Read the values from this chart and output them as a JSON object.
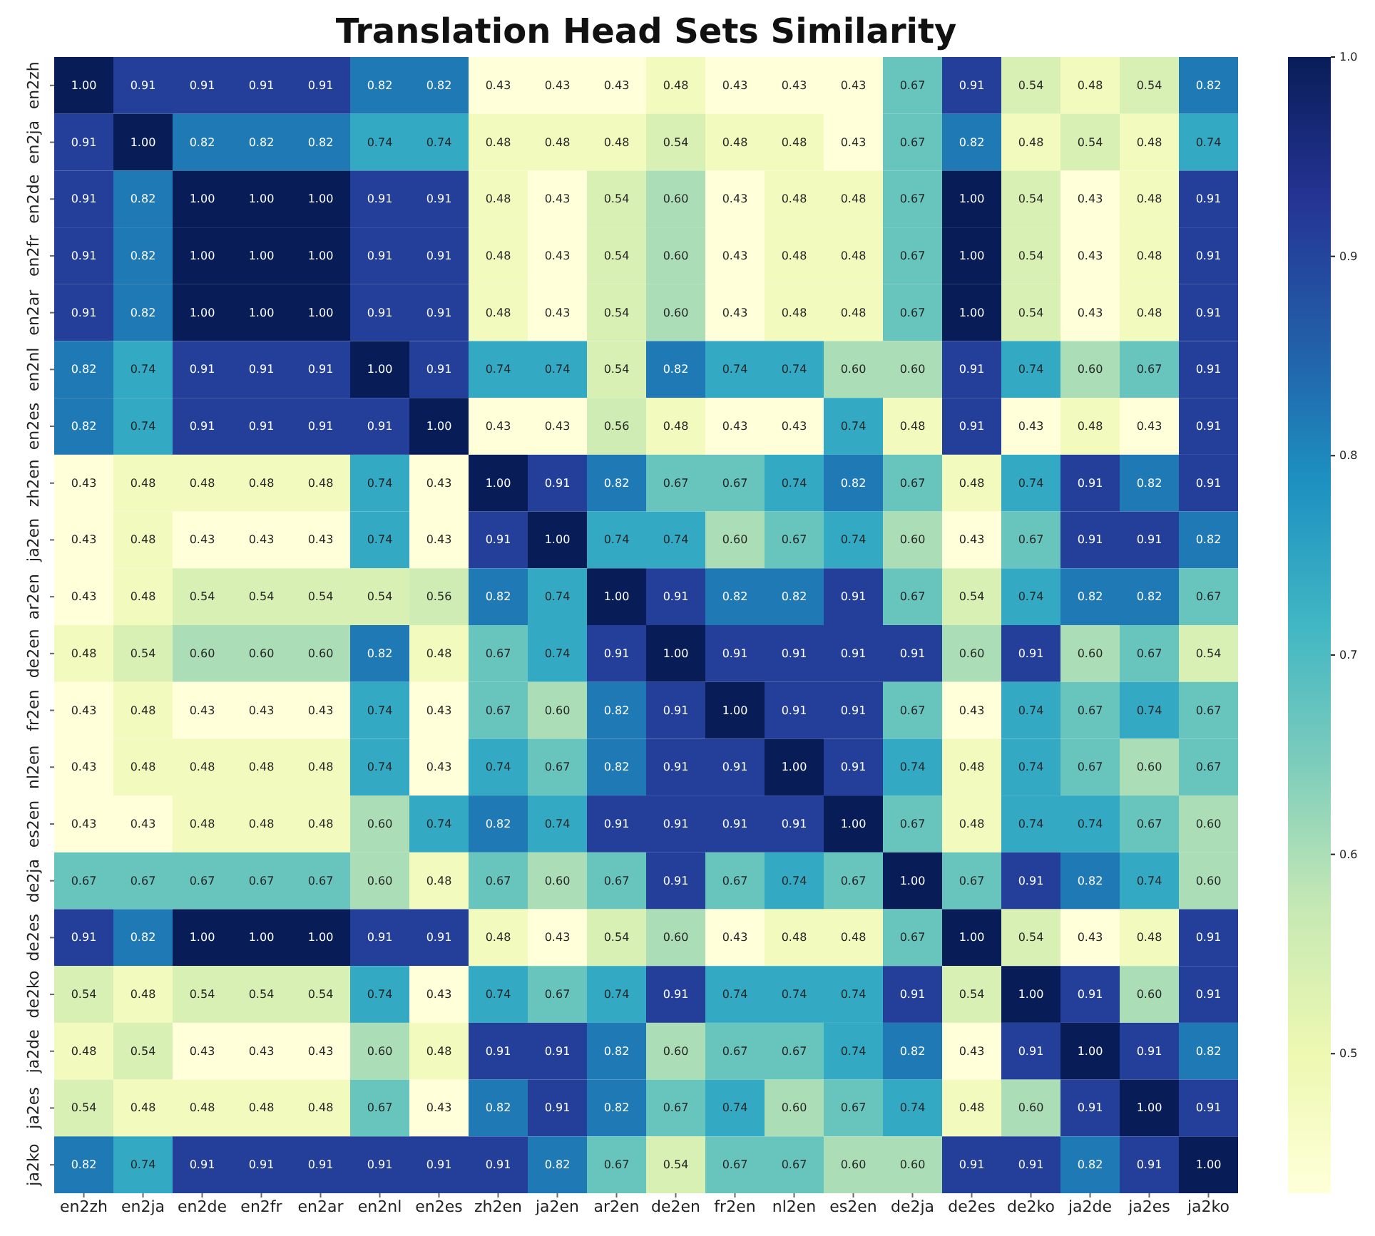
{
  "chart_data": {
    "type": "heatmap",
    "title": "Translation Head Sets Similarity",
    "categories": [
      "en2zh",
      "en2ja",
      "en2de",
      "en2fr",
      "en2ar",
      "en2nl",
      "en2es",
      "zh2en",
      "ja2en",
      "ar2en",
      "de2en",
      "fr2en",
      "nl2en",
      "es2en",
      "de2ja",
      "de2es",
      "de2ko",
      "ja2de",
      "ja2es",
      "ja2ko"
    ],
    "y_categories": [
      "en2zh",
      "en2ja",
      "en2de",
      "en2fr",
      "en2ar",
      "en2nl",
      "en2es",
      "zh2en",
      "ja2en",
      "ar2en",
      "de2en",
      "fr2en",
      "nl2en",
      "es2en",
      "de2ja",
      "de2es",
      "de2ko",
      "ja2de",
      "ja2es",
      "ja2ko"
    ],
    "cells": [
      [
        1.0,
        0.91,
        0.91,
        0.91,
        0.91,
        0.82,
        0.82,
        0.43,
        0.43,
        0.43,
        0.48,
        0.43,
        0.43,
        0.43,
        0.67,
        0.91,
        0.54,
        0.48,
        0.54,
        0.82
      ],
      [
        0.91,
        1.0,
        0.82,
        0.82,
        0.82,
        0.74,
        0.74,
        0.48,
        0.48,
        0.48,
        0.54,
        0.48,
        0.48,
        0.43,
        0.67,
        0.82,
        0.48,
        0.54,
        0.48,
        0.74
      ],
      [
        0.91,
        0.82,
        1.0,
        1.0,
        1.0,
        0.91,
        0.91,
        0.48,
        0.43,
        0.54,
        0.6,
        0.43,
        0.48,
        0.48,
        0.67,
        1.0,
        0.54,
        0.43,
        0.48,
        0.91
      ],
      [
        0.91,
        0.82,
        1.0,
        1.0,
        1.0,
        0.91,
        0.91,
        0.48,
        0.43,
        0.54,
        0.6,
        0.43,
        0.48,
        0.48,
        0.67,
        1.0,
        0.54,
        0.43,
        0.48,
        0.91
      ],
      [
        0.91,
        0.82,
        1.0,
        1.0,
        1.0,
        0.91,
        0.91,
        0.48,
        0.43,
        0.54,
        0.6,
        0.43,
        0.48,
        0.48,
        0.67,
        1.0,
        0.54,
        0.43,
        0.48,
        0.91
      ],
      [
        0.82,
        0.74,
        0.91,
        0.91,
        0.91,
        1.0,
        0.91,
        0.74,
        0.74,
        0.54,
        0.82,
        0.74,
        0.74,
        0.6,
        0.6,
        0.91,
        0.74,
        0.6,
        0.67,
        0.91
      ],
      [
        0.82,
        0.74,
        0.91,
        0.91,
        0.91,
        0.91,
        1.0,
        0.43,
        0.43,
        0.56,
        0.48,
        0.43,
        0.43,
        0.74,
        0.48,
        0.91,
        0.43,
        0.48,
        0.43,
        0.91
      ],
      [
        0.43,
        0.48,
        0.48,
        0.48,
        0.48,
        0.74,
        0.43,
        1.0,
        0.91,
        0.82,
        0.67,
        0.67,
        0.74,
        0.82,
        0.67,
        0.48,
        0.74,
        0.91,
        0.82,
        0.91
      ],
      [
        0.43,
        0.48,
        0.43,
        0.43,
        0.43,
        0.74,
        0.43,
        0.91,
        1.0,
        0.74,
        0.74,
        0.6,
        0.67,
        0.74,
        0.6,
        0.43,
        0.67,
        0.91,
        0.91,
        0.82
      ],
      [
        0.43,
        0.48,
        0.54,
        0.54,
        0.54,
        0.54,
        0.56,
        0.82,
        0.74,
        1.0,
        0.91,
        0.82,
        0.82,
        0.91,
        0.67,
        0.54,
        0.74,
        0.82,
        0.82,
        0.67
      ],
      [
        0.48,
        0.54,
        0.6,
        0.6,
        0.6,
        0.82,
        0.48,
        0.67,
        0.74,
        0.91,
        1.0,
        0.91,
        0.91,
        0.91,
        0.91,
        0.6,
        0.91,
        0.6,
        0.67,
        0.54
      ],
      [
        0.43,
        0.48,
        0.43,
        0.43,
        0.43,
        0.74,
        0.43,
        0.67,
        0.6,
        0.82,
        0.91,
        1.0,
        0.91,
        0.91,
        0.67,
        0.43,
        0.74,
        0.67,
        0.74,
        0.67
      ],
      [
        0.43,
        0.48,
        0.48,
        0.48,
        0.48,
        0.74,
        0.43,
        0.74,
        0.67,
        0.82,
        0.91,
        0.91,
        1.0,
        0.91,
        0.74,
        0.48,
        0.74,
        0.67,
        0.6,
        0.67
      ],
      [
        0.43,
        0.43,
        0.48,
        0.48,
        0.48,
        0.6,
        0.74,
        0.82,
        0.74,
        0.91,
        0.91,
        0.91,
        0.91,
        1.0,
        0.67,
        0.48,
        0.74,
        0.74,
        0.67,
        0.6
      ],
      [
        0.67,
        0.67,
        0.67,
        0.67,
        0.67,
        0.6,
        0.48,
        0.67,
        0.6,
        0.67,
        0.91,
        0.67,
        0.74,
        0.67,
        1.0,
        0.67,
        0.91,
        0.82,
        0.74,
        0.6
      ],
      [
        0.91,
        0.82,
        1.0,
        1.0,
        1.0,
        0.91,
        0.91,
        0.48,
        0.43,
        0.54,
        0.6,
        0.43,
        0.48,
        0.48,
        0.67,
        1.0,
        0.54,
        0.43,
        0.48,
        0.91
      ],
      [
        0.54,
        0.48,
        0.54,
        0.54,
        0.54,
        0.74,
        0.43,
        0.74,
        0.67,
        0.74,
        0.91,
        0.74,
        0.74,
        0.74,
        0.91,
        0.54,
        1.0,
        0.91,
        0.6,
        0.91
      ],
      [
        0.48,
        0.54,
        0.43,
        0.43,
        0.43,
        0.6,
        0.48,
        0.91,
        0.91,
        0.82,
        0.6,
        0.67,
        0.67,
        0.74,
        0.82,
        0.43,
        0.91,
        1.0,
        0.91,
        0.82
      ],
      [
        0.54,
        0.48,
        0.48,
        0.48,
        0.48,
        0.67,
        0.43,
        0.82,
        0.91,
        0.82,
        0.67,
        0.74,
        0.6,
        0.67,
        0.74,
        0.48,
        0.6,
        0.91,
        1.0,
        0.91
      ],
      [
        0.82,
        0.74,
        0.91,
        0.91,
        0.91,
        0.91,
        0.91,
        0.91,
        0.82,
        0.67,
        0.54,
        0.67,
        0.67,
        0.6,
        0.6,
        0.91,
        0.91,
        0.82,
        0.91,
        1.0
      ]
    ],
    "cell_labels": [
      [
        "1.00",
        "0.91",
        "0.91",
        "0.91",
        "0.91",
        "0.82",
        "0.82",
        "0.43",
        "0.43",
        "0.43",
        "0.48",
        "0.43",
        "0.43",
        "0.43",
        "0.67",
        "0.91",
        "0.54",
        "0.48",
        "0.54",
        "0.82"
      ],
      [
        "0.91",
        "1.00",
        "0.82",
        "0.82",
        "0.82",
        "0.74",
        "0.74",
        "0.48",
        "0.48",
        "0.48",
        "0.54",
        "0.48",
        "0.48",
        "0.43",
        "0.67",
        "0.82",
        "0.48",
        "0.54",
        "0.48",
        "0.74"
      ],
      [
        "0.91",
        "0.82",
        "1.00",
        "1.00",
        "1.00",
        "0.91",
        "0.91",
        "0.48",
        "0.43",
        "0.54",
        "0.60",
        "0.43",
        "0.48",
        "0.48",
        "0.67",
        "1.00",
        "0.54",
        "0.43",
        "0.48",
        "0.91"
      ],
      [
        "0.91",
        "0.82",
        "1.00",
        "1.00",
        "1.00",
        "0.91",
        "0.91",
        "0.48",
        "0.43",
        "0.54",
        "0.60",
        "0.43",
        "0.48",
        "0.48",
        "0.67",
        "1.00",
        "0.54",
        "0.43",
        "0.48",
        "0.91"
      ],
      [
        "0.91",
        "0.82",
        "1.00",
        "1.00",
        "1.00",
        "0.91",
        "0.91",
        "0.48",
        "0.43",
        "0.54",
        "0.60",
        "0.43",
        "0.48",
        "0.48",
        "0.67",
        "1.00",
        "0.54",
        "0.43",
        "0.48",
        "0.91"
      ],
      [
        "0.82",
        "0.74",
        "0.91",
        "0.91",
        "0.91",
        "1.00",
        "0.91",
        "0.74",
        "0.74",
        "0.54",
        "0.82",
        "0.74",
        "0.74",
        "0.60",
        "0.60",
        "0.91",
        "0.74",
        "0.60",
        "0.67",
        "0.91"
      ],
      [
        "0.82",
        "0.74",
        "0.91",
        "0.91",
        "0.91",
        "0.91",
        "1.00",
        "0.43",
        "0.43",
        "0.56",
        "0.48",
        "0.43",
        "0.43",
        "0.74",
        "0.48",
        "0.91",
        "0.43",
        "0.48",
        "0.43",
        "0.91"
      ],
      [
        "0.43",
        "0.48",
        "0.48",
        "0.48",
        "0.48",
        "0.74",
        "0.43",
        "1.00",
        "0.91",
        "0.82",
        "0.67",
        "0.67",
        "0.74",
        "0.82",
        "0.67",
        "0.48",
        "0.74",
        "0.91",
        "0.82",
        "0.91"
      ],
      [
        "0.43",
        "0.48",
        "0.43",
        "0.43",
        "0.43",
        "0.74",
        "0.43",
        "0.91",
        "1.00",
        "0.74",
        "0.74",
        "0.60",
        "0.67",
        "0.74",
        "0.60",
        "0.43",
        "0.67",
        "0.91",
        "0.91",
        "0.82"
      ],
      [
        "0.43",
        "0.48",
        "0.54",
        "0.54",
        "0.54",
        "0.54",
        "0.56",
        "0.82",
        "0.74",
        "1.00",
        "0.91",
        "0.82",
        "0.82",
        "0.91",
        "0.67",
        "0.54",
        "0.74",
        "0.82",
        "0.82",
        "0.67"
      ],
      [
        "0.48",
        "0.54",
        "0.60",
        "0.60",
        "0.60",
        "0.82",
        "0.48",
        "0.67",
        "0.74",
        "0.91",
        "1.00",
        "0.91",
        "0.91",
        "0.91",
        "0.91",
        "0.60",
        "0.91",
        "0.60",
        "0.67",
        "0.54"
      ],
      [
        "0.43",
        "0.48",
        "0.43",
        "0.43",
        "0.43",
        "0.74",
        "0.43",
        "0.67",
        "0.60",
        "0.82",
        "0.91",
        "1.00",
        "0.91",
        "0.91",
        "0.67",
        "0.43",
        "0.74",
        "0.67",
        "0.74",
        "0.67"
      ],
      [
        "0.43",
        "0.48",
        "0.48",
        "0.48",
        "0.48",
        "0.74",
        "0.43",
        "0.74",
        "0.67",
        "0.82",
        "0.91",
        "0.91",
        "1.00",
        "0.91",
        "0.74",
        "0.48",
        "0.74",
        "0.67",
        "0.60",
        "0.67"
      ],
      [
        "0.43",
        "0.43",
        "0.48",
        "0.48",
        "0.48",
        "0.60",
        "0.74",
        "0.82",
        "0.74",
        "0.91",
        "0.91",
        "0.91",
        "0.91",
        "1.00",
        "0.67",
        "0.48",
        "0.74",
        "0.74",
        "0.67",
        "0.60"
      ],
      [
        "0.67",
        "0.67",
        "0.67",
        "0.67",
        "0.67",
        "0.60",
        "0.48",
        "0.67",
        "0.60",
        "0.67",
        "0.91",
        "0.67",
        "0.74",
        "0.67",
        "1.00",
        "0.67",
        "0.91",
        "0.82",
        "0.74",
        "0.60"
      ],
      [
        "0.91",
        "0.82",
        "1.00",
        "1.00",
        "1.00",
        "0.91",
        "0.91",
        "0.48",
        "0.43",
        "0.54",
        "0.60",
        "0.43",
        "0.48",
        "0.48",
        "0.67",
        "1.00",
        "0.54",
        "0.43",
        "0.48",
        "0.91"
      ],
      [
        "0.54",
        "0.48",
        "0.54",
        "0.54",
        "0.54",
        "0.74",
        "0.43",
        "0.74",
        "0.67",
        "0.74",
        "0.91",
        "0.74",
        "0.74",
        "0.74",
        "0.91",
        "0.54",
        "1.00",
        "0.91",
        "0.60",
        "0.91"
      ],
      [
        "0.48",
        "0.54",
        "0.43",
        "0.43",
        "0.43",
        "0.60",
        "0.48",
        "0.91",
        "0.91",
        "0.82",
        "0.60",
        "0.67",
        "0.67",
        "0.74",
        "0.82",
        "0.43",
        "0.91",
        "1.00",
        "0.91",
        "0.82"
      ],
      [
        "0.54",
        "0.48",
        "0.48",
        "0.48",
        "0.48",
        "0.67",
        "0.43",
        "0.82",
        "0.91",
        "0.82",
        "0.67",
        "0.74",
        "0.60",
        "0.67",
        "0.74",
        "0.48",
        "0.60",
        "0.91",
        "1.00",
        "0.91"
      ],
      [
        "0.82",
        "0.74",
        "0.91",
        "0.91",
        "0.91",
        "0.91",
        "0.91",
        "0.91",
        "0.82",
        "0.67",
        "0.54",
        "0.67",
        "0.67",
        "0.60",
        "0.60",
        "0.91",
        "0.91",
        "0.82",
        "0.91",
        "1.00"
      ]
    ],
    "clim": [
      0.43,
      1.0
    ],
    "cticks": [
      0.5,
      0.6,
      0.7,
      0.8,
      0.9,
      {
        "value": 1,
        "label": "1.0"
      }
    ],
    "data_labels": true
  }
}
